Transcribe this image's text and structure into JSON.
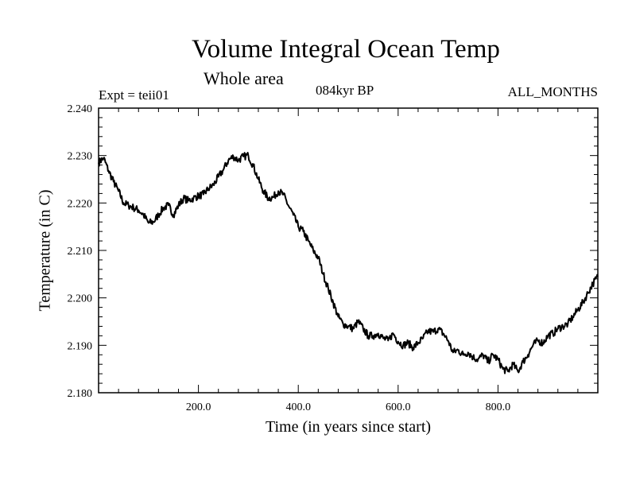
{
  "header": {
    "title": "Volume Integral Ocean Temp",
    "subtitle": "Whole area",
    "experiment": "Expt = teii01",
    "period": "084kyr BP",
    "months": "ALL_MONTHS"
  },
  "chart_data": {
    "type": "line",
    "xlabel": "Time (in years since start)",
    "ylabel": "Temperature (in C)",
    "xlim": [
      0,
      1000
    ],
    "ylim": [
      2.18,
      2.24
    ],
    "x_ticks": [
      200,
      400,
      600,
      800
    ],
    "x_tick_labels": [
      "200.0",
      "400.0",
      "600.0",
      "800.0"
    ],
    "y_ticks": [
      2.18,
      2.19,
      2.2,
      2.21,
      2.22,
      2.23,
      2.24
    ],
    "y_tick_labels": [
      "2.180",
      "2.190",
      "2.200",
      "2.210",
      "2.220",
      "2.230",
      "2.240"
    ],
    "grid": false,
    "legend": "none",
    "line_color": "#000000",
    "series": [
      {
        "x": [
          0,
          10,
          20,
          30,
          40,
          50,
          60,
          70,
          80,
          90,
          100,
          110,
          120,
          130,
          140,
          150,
          160,
          170,
          180,
          190,
          200,
          210,
          220,
          230,
          240,
          250,
          260,
          270,
          280,
          290,
          300,
          310,
          320,
          330,
          340,
          350,
          360,
          370,
          380,
          390,
          400,
          410,
          420,
          430,
          440,
          450,
          460,
          470,
          480,
          490,
          500,
          510,
          520,
          530,
          540,
          550,
          560,
          570,
          580,
          590,
          600,
          610,
          620,
          630,
          640,
          650,
          660,
          670,
          680,
          690,
          700,
          710,
          720,
          730,
          740,
          750,
          760,
          770,
          780,
          790,
          800,
          810,
          820,
          830,
          840,
          850,
          860,
          870,
          880,
          890,
          900,
          910,
          920,
          930,
          940,
          950,
          960,
          970,
          980,
          990,
          1000
        ],
        "values": [
          2.2285,
          2.2295,
          2.2268,
          2.2245,
          2.2225,
          2.22,
          2.2195,
          2.219,
          2.2185,
          2.2175,
          2.2158,
          2.216,
          2.2175,
          2.219,
          2.2195,
          2.2175,
          2.2195,
          2.221,
          2.2205,
          2.221,
          2.2215,
          2.2218,
          2.223,
          2.2238,
          2.2255,
          2.227,
          2.229,
          2.2298,
          2.229,
          2.2298,
          2.23,
          2.2278,
          2.225,
          2.2225,
          2.221,
          2.2212,
          2.2225,
          2.2218,
          2.2195,
          2.2175,
          2.215,
          2.214,
          2.212,
          2.21,
          2.2085,
          2.205,
          2.202,
          2.199,
          2.196,
          2.1945,
          2.194,
          2.1935,
          2.195,
          2.1935,
          2.192,
          2.192,
          2.1925,
          2.1915,
          2.191,
          2.1925,
          2.1908,
          2.19,
          2.1905,
          2.1895,
          2.1905,
          2.1915,
          2.193,
          2.1928,
          2.1935,
          2.1925,
          2.191,
          2.1885,
          2.189,
          2.188,
          2.1885,
          2.1875,
          2.187,
          2.188,
          2.1865,
          2.188,
          2.187,
          2.185,
          2.1845,
          2.186,
          2.1845,
          2.1865,
          2.188,
          2.19,
          2.191,
          2.1905,
          2.192,
          2.1925,
          2.1935,
          2.194,
          2.1945,
          2.196,
          2.1975,
          2.199,
          2.201,
          2.203,
          2.2045
        ]
      }
    ]
  }
}
